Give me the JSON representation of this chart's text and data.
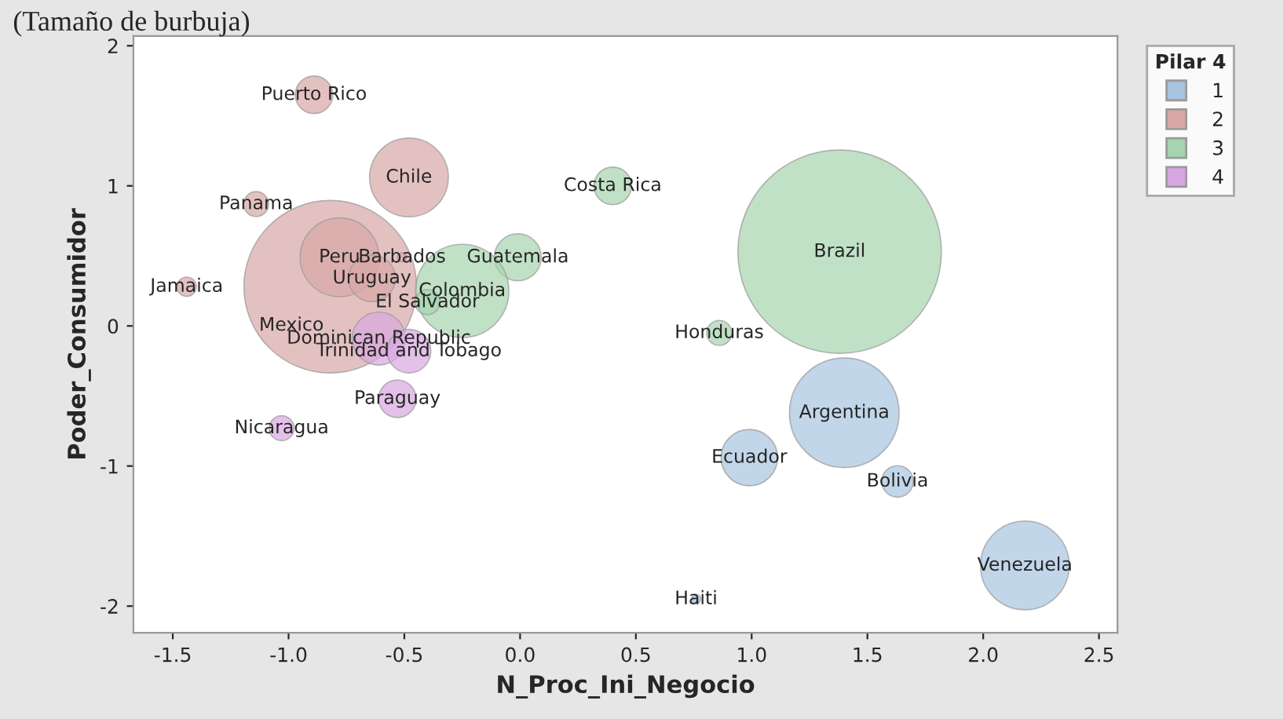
{
  "chart_data": {
    "type": "bubble",
    "title": "(Tamaño de burbuja)",
    "xlabel": "N_Proc_Ini_Negocio",
    "ylabel": "Poder_Consumidor",
    "legend_title": "Pilar 4",
    "legend": "right",
    "grid": false,
    "xlim": [
      -1.67,
      2.58
    ],
    "ylim": [
      -2.19,
      2.07
    ],
    "xticks": [
      -1.5,
      {
        "value": -1.0,
        "label": "-1.0"
      },
      -0.5,
      {
        "value": 0.0,
        "label": "0.0"
      },
      0.5,
      {
        "value": 1.0,
        "label": "1.0"
      },
      1.5,
      {
        "value": 2.0,
        "label": "2.0"
      },
      2.5
    ],
    "yticks": [
      -2,
      -1,
      0,
      1,
      2
    ],
    "series": [
      {
        "name": "1",
        "color": "#a7c4e0",
        "x": [
          1.4,
          0.99,
          1.63,
          2.18,
          0.76
        ],
        "values": [
          -0.62,
          -0.94,
          -1.11,
          -1.71,
          -1.95
        ],
        "sizes": [
          0.29,
          0.077,
          0.024,
          0.19,
          0.002
        ]
      },
      {
        "name": "2",
        "color": "#d9a6a6",
        "x": [
          -0.89,
          -0.48,
          -1.14,
          -0.82,
          -0.78,
          -0.51,
          -0.64,
          -1.44
        ],
        "values": [
          1.65,
          1.06,
          0.87,
          0.28,
          0.49,
          0.49,
          0.34,
          0.28
        ],
        "sizes": [
          0.034,
          0.15,
          0.015,
          0.72,
          0.15,
          0.002,
          0.053,
          0.009
        ]
      },
      {
        "name": "3",
        "color": "#a6d4ae",
        "x": [
          0.4,
          -0.01,
          -0.25,
          -0.4,
          0.86,
          1.38
        ],
        "values": [
          1.0,
          0.49,
          0.25,
          0.17,
          -0.05,
          0.53
        ],
        "sizes": [
          0.034,
          0.053,
          0.21,
          0.015,
          0.015,
          1
        ]
      },
      {
        "name": "4",
        "color": "#d8a6e0",
        "x": [
          -0.61,
          -0.48,
          -0.53,
          -1.03
        ],
        "values": [
          -0.09,
          -0.18,
          -0.52,
          -0.73
        ],
        "sizes": [
          0.068,
          0.046,
          0.034,
          0.015
        ]
      }
    ],
    "annotations": [
      {
        "text": "Argentina",
        "x": 1.4,
        "y": -0.62
      },
      {
        "text": "Ecuador",
        "x": 0.99,
        "y": -0.94
      },
      {
        "text": "Bolivia",
        "x": 1.63,
        "y": -1.11
      },
      {
        "text": "Venezuela",
        "x": 2.18,
        "y": -1.71
      },
      {
        "text": "Haiti",
        "x": 0.76,
        "y": -1.95
      },
      {
        "text": "Puerto Rico",
        "x": -0.89,
        "y": 1.65
      },
      {
        "text": "Chile",
        "x": -0.48,
        "y": 1.06
      },
      {
        "text": "Panama",
        "x": -1.14,
        "y": 0.87
      },
      {
        "text": "Mexico",
        "x": -0.82,
        "y": 0.28
      },
      {
        "text": "Peru",
        "x": -0.78,
        "y": 0.49
      },
      {
        "text": "Barbados",
        "x": -0.51,
        "y": 0.49
      },
      {
        "text": "Uruguay",
        "x": -0.64,
        "y": 0.34
      },
      {
        "text": "Jamaica",
        "x": -1.44,
        "y": 0.28
      },
      {
        "text": "Costa Rica",
        "x": 0.4,
        "y": 1.0
      },
      {
        "text": "Guatemala",
        "x": -0.01,
        "y": 0.49
      },
      {
        "text": "Colombia",
        "x": -0.25,
        "y": 0.25
      },
      {
        "text": "El Salvador",
        "x": -0.4,
        "y": 0.17
      },
      {
        "text": "Honduras",
        "x": 0.86,
        "y": -0.05
      },
      {
        "text": "Brazil",
        "x": 1.38,
        "y": 0.53
      },
      {
        "text": "Dominican Republic",
        "x": -0.61,
        "y": -0.09
      },
      {
        "text": "Trinidad and Tobago",
        "x": -0.48,
        "y": -0.18
      },
      {
        "text": "Paraguay",
        "x": -0.53,
        "y": -0.52
      },
      {
        "text": "Nicaragua",
        "x": -1.03,
        "y": -0.73
      }
    ]
  }
}
